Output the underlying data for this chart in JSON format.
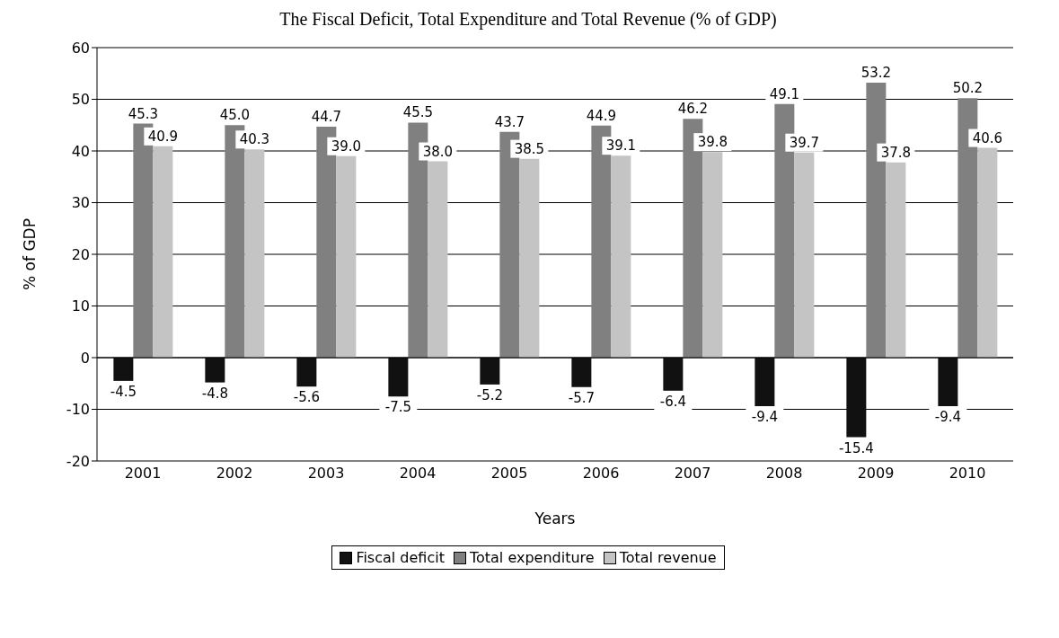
{
  "chart_data": {
    "type": "bar",
    "title": "The Fiscal Deficit, Total Expenditure and Total Revenue (% of GDP)",
    "xlabel": "Years",
    "ylabel": "% of GDP",
    "categories": [
      "2001",
      "2002",
      "2003",
      "2004",
      "2005",
      "2006",
      "2007",
      "2008",
      "2009",
      "2010"
    ],
    "series": [
      {
        "name": "Fiscal deficit",
        "color": "#111111",
        "values": [
          -4.5,
          -4.8,
          -5.6,
          -7.5,
          -5.2,
          -5.7,
          -6.4,
          -9.4,
          -15.4,
          -9.4
        ],
        "value_labels": [
          "-4.5",
          "-4.8",
          "-5.6",
          "-7.5",
          "-5.2",
          "-5.7",
          "-6.4",
          "-9.4",
          "-15.4",
          "-9.4"
        ]
      },
      {
        "name": "Total expenditure",
        "color": "#808080",
        "values": [
          45.3,
          45.0,
          44.7,
          45.5,
          43.7,
          44.9,
          46.2,
          49.1,
          53.2,
          50.2
        ],
        "value_labels": [
          "45.3",
          "45.0",
          "44.7",
          "45.5",
          "43.7",
          "44.9",
          "46.2",
          "49.1",
          "53.2",
          "50.2"
        ]
      },
      {
        "name": "Total revenue",
        "color": "#c4c4c4",
        "values": [
          40.9,
          40.3,
          39.0,
          38.0,
          38.5,
          39.1,
          39.8,
          39.7,
          37.8,
          40.6
        ],
        "value_labels": [
          "40.9",
          "40.3",
          "39.0",
          "38.0",
          "38.5",
          "39.1",
          "39.8",
          "39.7",
          "37.8",
          "40.6"
        ]
      }
    ],
    "ylim": [
      -20,
      60
    ],
    "yticks": [
      -20,
      -10,
      0,
      10,
      20,
      30,
      40,
      50,
      60
    ],
    "grid": "y",
    "legend": "bottom"
  }
}
